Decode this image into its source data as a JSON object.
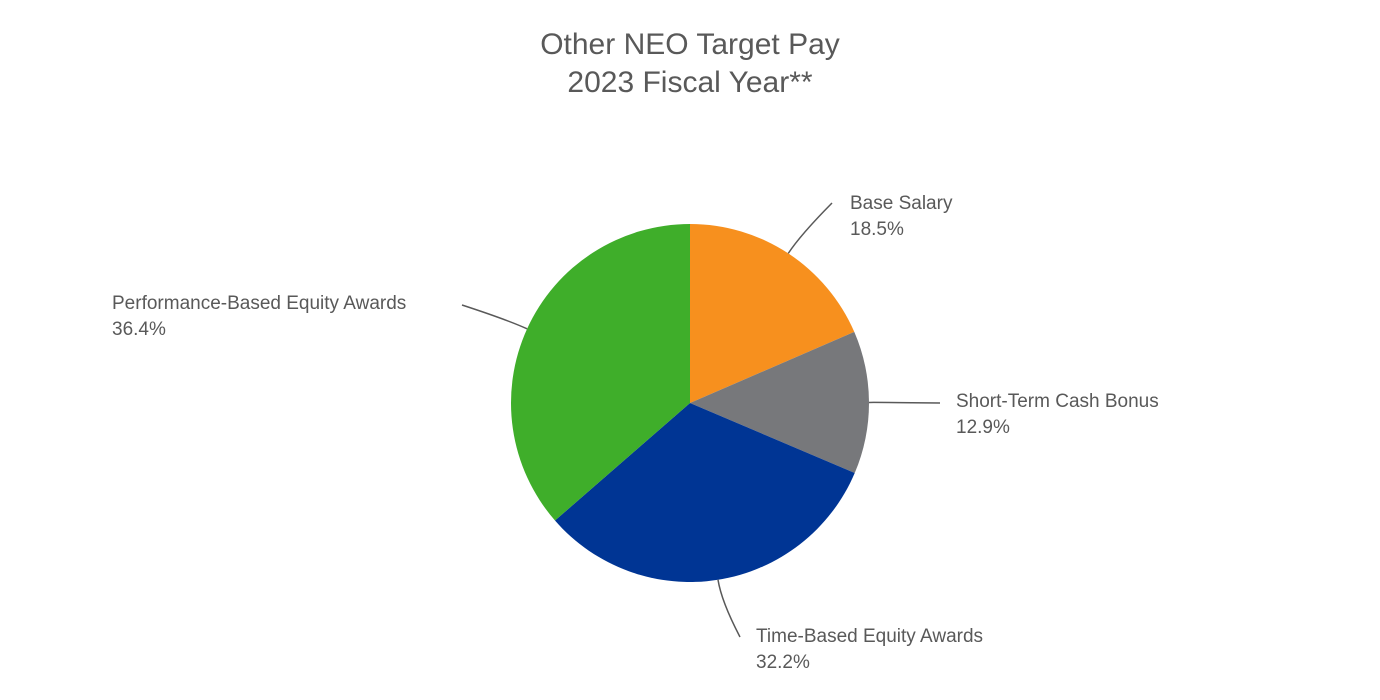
{
  "chart_data": {
    "type": "pie",
    "title": "Other NEO Target Pay",
    "subtitle": "2023 Fiscal Year**",
    "categories": [
      "Base Salary",
      "Short-Term Cash Bonus",
      "Time-Based Equity Awards",
      "Performance-Based Equity Awards"
    ],
    "values": [
      18.5,
      12.9,
      32.2,
      36.4
    ],
    "value_labels": [
      "18.5%",
      "12.9%",
      "32.2%",
      "36.4%"
    ],
    "colors": [
      "#f7901e",
      "#77787b",
      "#003594",
      "#3fae2a"
    ]
  }
}
